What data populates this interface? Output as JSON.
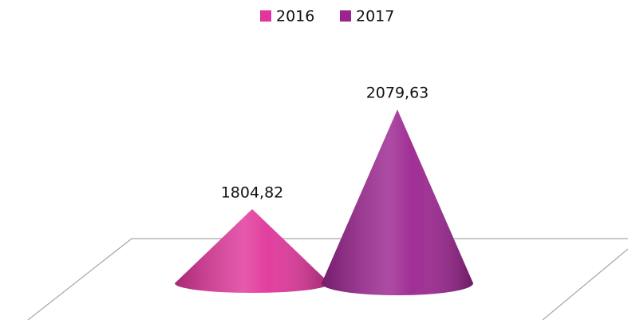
{
  "chart_data": {
    "type": "cone",
    "categories": [
      null
    ],
    "series": [
      {
        "name": "2016",
        "color": "#e0359a",
        "values": [
          1804.82
        ],
        "value_labels": [
          "1804,82"
        ]
      },
      {
        "name": "2017",
        "color": "#9b2490",
        "values": [
          2079.63
        ],
        "value_labels": [
          "2079,63"
        ]
      }
    ],
    "ylim": [
      1600,
      2100
    ],
    "legend": "top"
  }
}
